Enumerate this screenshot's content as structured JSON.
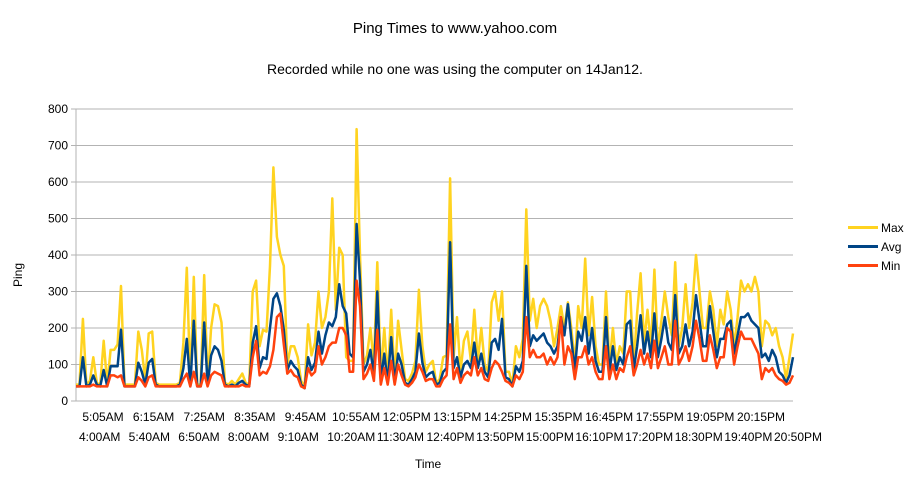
{
  "chart_data": {
    "type": "line",
    "title": "Ping Times to www.yahoo.com",
    "subtitle": "Recorded while no one was using the computer on 14Jan12.",
    "xlabel": "Time",
    "ylabel": "Ping",
    "ylim": [
      0,
      800
    ],
    "yticks": [
      0,
      100,
      200,
      300,
      400,
      500,
      600,
      700,
      800
    ],
    "grid": "horizontal",
    "legend_position": "right",
    "x_tick_labels_row1": [
      "5:05AM",
      "6:15AM",
      "7:25AM",
      "8:35AM",
      "9:45AM",
      "10:55AM",
      "12:05PM",
      "13:15PM",
      "14:25PM",
      "15:35PM",
      "16:45PM",
      "17:55PM",
      "19:05PM",
      "20:15PM"
    ],
    "x_tick_labels_row2": [
      "4:00AM",
      "5:40AM",
      "6:50AM",
      "8:00AM",
      "9:10AM",
      "10:20AM",
      "11:30AM",
      "12:40PM",
      "13:50PM",
      "15:00PM",
      "16:10PM",
      "17:20PM",
      "18:30PM",
      "19:40PM",
      "20:50PM"
    ],
    "series": [
      {
        "name": "Max",
        "color": "#ffd320",
        "values": [
          45,
          45,
          225,
          45,
          55,
          120,
          50,
          45,
          165,
          45,
          140,
          140,
          155,
          315,
          45,
          45,
          45,
          45,
          190,
          140,
          55,
          185,
          190,
          50,
          45,
          45,
          45,
          45,
          45,
          45,
          50,
          160,
          365,
          45,
          340,
          45,
          45,
          345,
          50,
          200,
          265,
          260,
          215,
          50,
          45,
          55,
          45,
          60,
          75,
          50,
          45,
          300,
          330,
          150,
          195,
          190,
          370,
          640,
          450,
          400,
          370,
          100,
          150,
          150,
          120,
          55,
          40,
          210,
          125,
          160,
          300,
          200,
          230,
          300,
          555,
          250,
          420,
          400,
          120,
          110,
          110,
          745,
          400,
          100,
          125,
          200,
          100,
          380,
          70,
          200,
          60,
          250,
          55,
          220,
          140,
          60,
          55,
          75,
          110,
          305,
          150,
          80,
          100,
          110,
          50,
          60,
          120,
          125,
          610,
          120,
          230,
          80,
          165,
          190,
          110,
          250,
          110,
          200,
          100,
          80,
          270,
          300,
          220,
          300,
          80,
          80,
          45,
          150,
          120,
          170,
          525,
          220,
          280,
          200,
          260,
          280,
          260,
          220,
          150,
          200,
          260,
          200,
          270,
          200,
          100,
          260,
          200,
          390,
          180,
          285,
          150,
          100,
          100,
          300,
          100,
          200,
          100,
          150,
          130,
          300,
          300,
          100,
          240,
          350,
          160,
          250,
          150,
          360,
          140,
          220,
          300,
          230,
          180,
          380,
          150,
          200,
          320,
          200,
          270,
          400,
          300,
          200,
          200,
          300,
          250,
          150,
          250,
          210,
          300,
          250,
          150,
          230,
          330,
          300,
          320,
          300,
          340,
          300,
          150,
          220,
          210,
          180,
          200,
          150,
          120,
          60,
          120,
          185
        ]
      },
      {
        "name": "Avg",
        "color": "#004586",
        "values": [
          40,
          40,
          120,
          40,
          45,
          70,
          45,
          40,
          85,
          40,
          95,
          95,
          95,
          195,
          40,
          40,
          40,
          40,
          105,
          80,
          45,
          105,
          115,
          45,
          40,
          40,
          40,
          40,
          40,
          40,
          45,
          90,
          170,
          40,
          220,
          40,
          40,
          215,
          45,
          125,
          150,
          140,
          110,
          45,
          40,
          45,
          40,
          50,
          55,
          45,
          40,
          160,
          205,
          90,
          120,
          115,
          200,
          280,
          295,
          260,
          195,
          85,
          110,
          95,
          85,
          45,
          35,
          120,
          85,
          105,
          190,
          130,
          180,
          215,
          205,
          230,
          320,
          260,
          240,
          130,
          120,
          485,
          330,
          80,
          100,
          140,
          70,
          300,
          55,
          130,
          50,
          175,
          50,
          130,
          100,
          50,
          45,
          60,
          80,
          185,
          105,
          65,
          75,
          80,
          45,
          50,
          80,
          90,
          435,
          90,
          120,
          65,
          100,
          110,
          90,
          160,
          90,
          130,
          80,
          65,
          160,
          170,
          140,
          225,
          65,
          60,
          40,
          95,
          80,
          110,
          370,
          150,
          180,
          165,
          175,
          185,
          160,
          150,
          130,
          150,
          230,
          180,
          265,
          170,
          85,
          190,
          165,
          230,
          130,
          200,
          110,
          80,
          80,
          230,
          80,
          150,
          85,
          120,
          100,
          210,
          220,
          85,
          150,
          235,
          130,
          190,
          120,
          240,
          120,
          170,
          230,
          160,
          140,
          290,
          130,
          150,
          210,
          150,
          190,
          290,
          220,
          150,
          150,
          260,
          190,
          120,
          170,
          170,
          210,
          220,
          130,
          180,
          230,
          230,
          240,
          220,
          210,
          200,
          120,
          130,
          110,
          140,
          120,
          80,
          70,
          50,
          70,
          120
        ]
      },
      {
        "name": "Min",
        "color": "#ff420e",
        "values": [
          40,
          40,
          40,
          40,
          40,
          45,
          40,
          40,
          40,
          40,
          70,
          70,
          65,
          70,
          40,
          40,
          40,
          40,
          65,
          55,
          40,
          65,
          70,
          40,
          40,
          40,
          40,
          40,
          40,
          40,
          40,
          60,
          75,
          40,
          80,
          40,
          40,
          75,
          40,
          70,
          80,
          75,
          70,
          40,
          40,
          40,
          40,
          40,
          45,
          40,
          40,
          120,
          165,
          70,
          80,
          75,
          95,
          140,
          230,
          240,
          155,
          75,
          85,
          70,
          65,
          40,
          35,
          90,
          70,
          80,
          150,
          100,
          120,
          150,
          160,
          160,
          200,
          200,
          180,
          80,
          80,
          330,
          260,
          60,
          75,
          100,
          55,
          195,
          45,
          90,
          45,
          110,
          45,
          100,
          70,
          45,
          40,
          50,
          65,
          100,
          80,
          55,
          60,
          60,
          40,
          40,
          60,
          70,
          210,
          60,
          90,
          50,
          70,
          80,
          70,
          120,
          70,
          90,
          60,
          55,
          90,
          110,
          100,
          80,
          55,
          50,
          40,
          70,
          60,
          80,
          230,
          120,
          140,
          120,
          120,
          130,
          100,
          120,
          100,
          120,
          230,
          100,
          150,
          130,
          60,
          120,
          120,
          150,
          100,
          120,
          80,
          60,
          60,
          150,
          60,
          100,
          60,
          90,
          80,
          120,
          150,
          70,
          100,
          140,
          100,
          130,
          90,
          165,
          90,
          120,
          150,
          100,
          100,
          220,
          100,
          120,
          150,
          110,
          150,
          220,
          170,
          110,
          110,
          180,
          140,
          90,
          120,
          120,
          200,
          190,
          100,
          150,
          190,
          170,
          170,
          170,
          150,
          130,
          60,
          90,
          80,
          90,
          70,
          60,
          55,
          45,
          50,
          70
        ]
      }
    ]
  }
}
